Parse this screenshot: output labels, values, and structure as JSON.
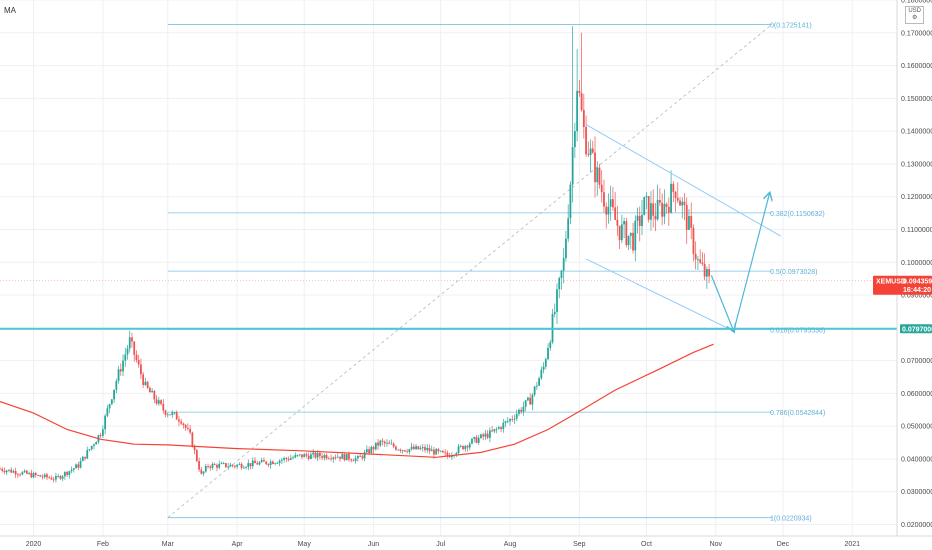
{
  "indicator_label": "MA",
  "currency_label": "USD",
  "currency_icon": "gear-icon",
  "chart_data": {
    "type": "candlestick",
    "symbol": "XEMUSD",
    "last_price": "0.09435957",
    "countdown": "16:44:20",
    "support_price": "0.07970000",
    "colors": {
      "up": "#26a69a",
      "down": "#ef5350",
      "ma": "#f44336",
      "fib": "#5fb0d8",
      "support": "#4fc3d7",
      "channel": "#90caf9",
      "arrow": "#4fb6d8",
      "last_tag": "#f44336",
      "support_tag": "#26a69a"
    },
    "x_axis": {
      "ticks": [
        {
          "label": "2020",
          "t": 0
        },
        {
          "label": "Feb",
          "t": 31
        },
        {
          "label": "Mar",
          "t": 60
        },
        {
          "label": "Apr",
          "t": 91
        },
        {
          "label": "May",
          "t": 121
        },
        {
          "label": "Jun",
          "t": 152
        },
        {
          "label": "Jul",
          "t": 182
        },
        {
          "label": "Aug",
          "t": 213
        },
        {
          "label": "Sep",
          "t": 244
        },
        {
          "label": "Oct",
          "t": 274
        },
        {
          "label": "Nov",
          "t": 305
        },
        {
          "label": "Dec",
          "t": 335
        },
        {
          "label": "2021",
          "t": 366
        }
      ],
      "range_days": [
        -15,
        386
      ]
    },
    "y_axis": {
      "range": [
        0.0165,
        0.18
      ],
      "ticks": [
        "0.18000000",
        "0.17000000",
        "0.16000000",
        "0.15000000",
        "0.14000000",
        "0.13000000",
        "0.12000000",
        "0.11000000",
        "0.10000000",
        "0.09000000",
        "0.07000000",
        "0.06000000",
        "0.05000000",
        "0.04000000",
        "0.03000000",
        "0.02000000"
      ],
      "tick_values": [
        0.18,
        0.17,
        0.16,
        0.15,
        0.14,
        0.13,
        0.12,
        0.11,
        0.1,
        0.09,
        0.07,
        0.06,
        0.05,
        0.04,
        0.03,
        0.02
      ]
    },
    "fibonacci": [
      {
        "label": "0(0.1725141)",
        "value": 0.1725141
      },
      {
        "label": "0.382(0.1150632)",
        "value": 0.1150632
      },
      {
        "label": "0.5(0.0973028)",
        "value": 0.0973028
      },
      {
        "label": "0.618(0.0795536)",
        "value": 0.0795536
      },
      {
        "label": "0.786(0.0542844)",
        "value": 0.0542844
      },
      {
        "label": "1(0.0220934)",
        "value": 0.0220934
      }
    ],
    "fib_range_days": [
      60,
      330
    ],
    "support_level": 0.0797,
    "ma_series": [
      [
        -15,
        0.0575
      ],
      [
        0,
        0.054
      ],
      [
        15,
        0.049
      ],
      [
        30,
        0.046
      ],
      [
        45,
        0.0445
      ],
      [
        60,
        0.0443
      ],
      [
        90,
        0.0432
      ],
      [
        120,
        0.0425
      ],
      [
        150,
        0.0415
      ],
      [
        180,
        0.0405
      ],
      [
        200,
        0.042
      ],
      [
        215,
        0.0445
      ],
      [
        230,
        0.049
      ],
      [
        244,
        0.0545
      ],
      [
        260,
        0.061
      ],
      [
        280,
        0.0675
      ],
      [
        295,
        0.0725
      ],
      [
        304,
        0.075
      ]
    ],
    "price_path": [
      [
        -15,
        0.037
      ],
      [
        0,
        0.035
      ],
      [
        10,
        0.034
      ],
      [
        20,
        0.038
      ],
      [
        30,
        0.048
      ],
      [
        37,
        0.064
      ],
      [
        43,
        0.076
      ],
      [
        50,
        0.062
      ],
      [
        58,
        0.055
      ],
      [
        66,
        0.052
      ],
      [
        70,
        0.047
      ],
      [
        75,
        0.035
      ],
      [
        78,
        0.038
      ],
      [
        90,
        0.038
      ],
      [
        105,
        0.039
      ],
      [
        120,
        0.041
      ],
      [
        135,
        0.041
      ],
      [
        145,
        0.04
      ],
      [
        155,
        0.045
      ],
      [
        165,
        0.043
      ],
      [
        175,
        0.043
      ],
      [
        185,
        0.041
      ],
      [
        195,
        0.045
      ],
      [
        205,
        0.048
      ],
      [
        213,
        0.052
      ],
      [
        222,
        0.058
      ],
      [
        228,
        0.068
      ],
      [
        233,
        0.085
      ],
      [
        237,
        0.1
      ],
      [
        240,
        0.125
      ],
      [
        243,
        0.155
      ],
      [
        246,
        0.14
      ],
      [
        250,
        0.13
      ],
      [
        255,
        0.12
      ],
      [
        262,
        0.11
      ],
      [
        268,
        0.107
      ],
      [
        273,
        0.117
      ],
      [
        278,
        0.115
      ],
      [
        283,
        0.118
      ],
      [
        287,
        0.123
      ],
      [
        292,
        0.113
      ],
      [
        297,
        0.1
      ],
      [
        302,
        0.094
      ]
    ],
    "wicks": [
      [
        241,
        0.172
      ],
      [
        243,
        0.165
      ],
      [
        245,
        0.17
      ]
    ],
    "channel": {
      "upper": [
        [
          247,
          0.142
        ],
        [
          334,
          0.108
        ]
      ],
      "lower": [
        [
          247,
          0.101
        ],
        [
          313,
          0.079
        ]
      ]
    },
    "projection_arrows": [
      [
        [
          303,
          0.096
        ],
        [
          313,
          0.079
        ]
      ],
      [
        [
          313,
          0.079
        ],
        [
          329,
          0.121
        ]
      ]
    ],
    "dashed_diagonal": [
      [
        60,
        0.0221
      ],
      [
        330,
        0.1725
      ]
    ]
  }
}
